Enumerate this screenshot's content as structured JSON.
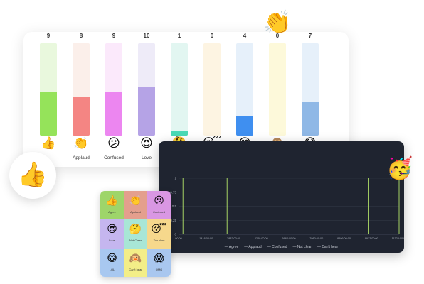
{
  "reactions": [
    {
      "count": "9",
      "value": 9,
      "emoji": "👍",
      "label": "",
      "track": "#e9f8dd",
      "fill": "#95e35a"
    },
    {
      "count": "8",
      "value": 8,
      "emoji": "👏",
      "label": "Applaud",
      "track": "#fbefea",
      "fill": "#f48583"
    },
    {
      "count": "9",
      "value": 9,
      "emoji": "😕",
      "label": "Confused",
      "track": "#fbe9fb",
      "fill": "#ec86f0"
    },
    {
      "count": "10",
      "value": 10,
      "emoji": "😍",
      "label": "Love",
      "track": "#eeebf8",
      "fill": "#b5a3e6"
    },
    {
      "count": "1",
      "value": 1,
      "emoji": "🤔",
      "label": "Not clear",
      "track": "#e2f6f1",
      "fill": "#4ad9b5"
    },
    {
      "count": "0",
      "value": 0,
      "emoji": "😴",
      "label": "Too slow",
      "track": "#fdf4e2",
      "fill": "#f5c26b"
    },
    {
      "count": "4",
      "value": 4,
      "emoji": "😂",
      "label": "LOL",
      "track": "#e6f0fa",
      "fill": "#3f8ff0"
    },
    {
      "count": "0",
      "value": 0,
      "emoji": "🙉",
      "label": "Can't hear",
      "track": "#fdf9da",
      "fill": "#f5e46a"
    },
    {
      "count": "7",
      "value": 7,
      "emoji": "😱",
      "label": "OMG",
      "track": "#e6f0fa",
      "fill": "#8fb8e6"
    }
  ],
  "max_value": 10,
  "chart_data": {
    "type": "line",
    "y_ticks": [
      "1",
      "0.75",
      "0.5",
      "0.25",
      "0"
    ],
    "x_ticks": [
      "00:00",
      "1416:00:00",
      "2832:00:00",
      "4248:00:00",
      "5664:00:00",
      "7080:00:00",
      "8496:00:00",
      "9912:00:00",
      "11328:00:00"
    ],
    "ylim": [
      0,
      1
    ],
    "spikes": [
      0.02,
      0.22,
      0.86
    ],
    "legend": [
      "Agree",
      "Applaud",
      "Confused",
      "Not clear",
      "Can't hear"
    ],
    "line_color": "#b6e76a"
  },
  "grid": [
    {
      "emoji": "👍",
      "label": "Agree",
      "bg": "#9ed56a"
    },
    {
      "emoji": "👏",
      "label": "Applaud",
      "bg": "#e49f8d"
    },
    {
      "emoji": "😕",
      "label": "Confused",
      "bg": "#d997e3"
    },
    {
      "emoji": "😍",
      "label": "Love",
      "bg": "#c5b6ef"
    },
    {
      "emoji": "🤔",
      "label": "Not Clear",
      "bg": "#a8e6d6"
    },
    {
      "emoji": "😴",
      "label": "Too slow",
      "bg": "#f6d88c"
    },
    {
      "emoji": "😂",
      "label": "LOL",
      "bg": "#a8c8f0"
    },
    {
      "emoji": "🙉",
      "label": "Can't hear",
      "bg": "#f3ee88"
    },
    {
      "emoji": "😱",
      "label": "OMG",
      "bg": "#a9c7ef"
    }
  ],
  "decor": {
    "thumb_emoji": "👍",
    "clap_emoji": "👏",
    "party_emoji": "🥳"
  }
}
